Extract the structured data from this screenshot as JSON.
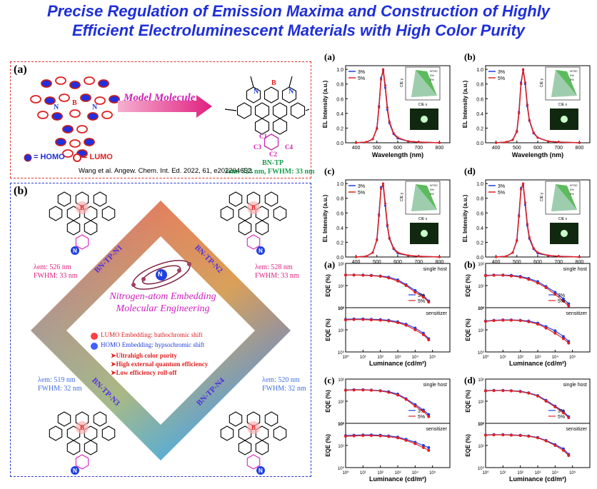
{
  "title_line1": "Precise Regulation of Emission Maxima and Construction of Highly",
  "title_line2": "Efficient Electroluminescent Materials with High Color Purity",
  "panel_a": {
    "label": "(a)",
    "arrow_text": "Model Molecule",
    "atoms": [
      "B",
      "N",
      "N"
    ],
    "sub_labels": [
      "C1",
      "C2",
      "C3",
      "C4"
    ],
    "molecule_name": "BN-TP",
    "emission": "λem: 523 nm, FWHM: 33 nm",
    "homo_label": "= HOMO",
    "lumo_label": "= LUMO",
    "citation": "Wang et al. Angew. Chem. Int. Ed. 2022, 61, e202204652."
  },
  "panel_b": {
    "label": "(b)",
    "n1": {
      "name": "BN-TP-N1",
      "lambda": "λem: 526 nm",
      "fwhm": "FWHM: 33 nm"
    },
    "n2": {
      "name": "BN-TP-N2",
      "lambda": "λem: 528 nm",
      "fwhm": "FWHM: 33 nm"
    },
    "n3": {
      "name": "BN-TP-N3",
      "lambda": "λem: 519 nm",
      "fwhm": "FWHM: 32 nm"
    },
    "n4": {
      "name": "BN-TP-N4",
      "lambda": "λem: 520 nm",
      "fwhm": "FWHM: 32 nm"
    },
    "center_title1": "Nitrogen-atom Embedding",
    "center_title2": "Molecular Engineering",
    "lumo_line": "LUMO Embedding: bathochromic shift",
    "homo_line": "HOMO Embedding: hypsochromic shift",
    "bullets": [
      "Ultrahigh color purity",
      "High external quantum efficiency",
      "Low efficiency roll-off"
    ],
    "atom_n": "N",
    "atom_b": "B"
  },
  "colors": {
    "title": "#1f2fd8",
    "blue": "#1f3fe0",
    "red": "#e02020",
    "magenta": "#e020c0",
    "green": "#1aa050"
  },
  "chart_data": [
    {
      "type": "line",
      "panel": "(a)",
      "xlabel": "Wavelength (nm)",
      "ylabel": "EL Intensity (a.u.)",
      "xlim": [
        350,
        850
      ],
      "ylim": [
        0,
        1.05
      ],
      "x": [
        400,
        450,
        480,
        500,
        510,
        520,
        530,
        540,
        550,
        560,
        580,
        600,
        650,
        700,
        800
      ],
      "series": [
        {
          "name": "3%",
          "values": [
            0,
            0.01,
            0.05,
            0.2,
            0.5,
            0.88,
            0.98,
            0.75,
            0.45,
            0.27,
            0.12,
            0.06,
            0.02,
            0.01,
            0
          ]
        },
        {
          "name": "5%",
          "values": [
            0,
            0.01,
            0.05,
            0.19,
            0.48,
            0.86,
            1.0,
            0.78,
            0.48,
            0.29,
            0.13,
            0.07,
            0.02,
            0.01,
            0
          ]
        }
      ],
      "inset": {
        "title": "",
        "xlabel": "CIE x",
        "ylabel": "CIE y",
        "legend": [
          "NTSC",
          "3%",
          "5%"
        ]
      }
    },
    {
      "type": "line",
      "panel": "(b)",
      "xlabel": "Wavelength (nm)",
      "ylabel": "EL Intensity (a.u.)",
      "xlim": [
        350,
        850
      ],
      "ylim": [
        0,
        1.05
      ],
      "x": [
        400,
        450,
        480,
        500,
        510,
        520,
        530,
        540,
        550,
        560,
        580,
        600,
        650,
        700,
        800
      ],
      "series": [
        {
          "name": "3%",
          "values": [
            0,
            0.01,
            0.04,
            0.16,
            0.42,
            0.82,
            0.99,
            0.8,
            0.5,
            0.3,
            0.13,
            0.07,
            0.02,
            0.01,
            0
          ]
        },
        {
          "name": "5%",
          "values": [
            0,
            0.01,
            0.04,
            0.15,
            0.4,
            0.8,
            1.0,
            0.82,
            0.52,
            0.31,
            0.14,
            0.07,
            0.02,
            0.01,
            0
          ]
        }
      ],
      "inset": {
        "title": "",
        "xlabel": "CIE x",
        "ylabel": "CIE y",
        "legend": [
          "NTSC",
          "3%",
          "5%"
        ]
      }
    },
    {
      "type": "line",
      "panel": "(c)",
      "xlabel": "Wavelength (nm)",
      "ylabel": "EL Intensity (a.u.)",
      "xlim": [
        350,
        850
      ],
      "ylim": [
        0,
        1.05
      ],
      "x": [
        400,
        450,
        480,
        500,
        510,
        520,
        530,
        540,
        550,
        560,
        580,
        600,
        650,
        700,
        800
      ],
      "series": [
        {
          "name": "3%",
          "values": [
            0,
            0.01,
            0.06,
            0.24,
            0.58,
            0.95,
            0.97,
            0.7,
            0.42,
            0.25,
            0.11,
            0.05,
            0.02,
            0.01,
            0
          ]
        },
        {
          "name": "5%",
          "values": [
            0,
            0.01,
            0.06,
            0.23,
            0.56,
            0.93,
            1.0,
            0.73,
            0.44,
            0.26,
            0.12,
            0.06,
            0.02,
            0.01,
            0
          ]
        }
      ],
      "inset": {
        "title": "",
        "xlabel": "CIE x",
        "ylabel": "CIE y",
        "legend": [
          "NTSC",
          "3%",
          "5%"
        ]
      }
    },
    {
      "type": "line",
      "panel": "(d)",
      "xlabel": "Wavelength (nm)",
      "ylabel": "EL Intensity (a.u.)",
      "xlim": [
        350,
        850
      ],
      "ylim": [
        0,
        1.05
      ],
      "x": [
        400,
        450,
        480,
        500,
        510,
        520,
        530,
        540,
        550,
        560,
        580,
        600,
        650,
        700,
        800
      ],
      "series": [
        {
          "name": "3%",
          "values": [
            0,
            0.01,
            0.06,
            0.23,
            0.57,
            0.94,
            0.98,
            0.71,
            0.43,
            0.25,
            0.11,
            0.05,
            0.02,
            0.01,
            0
          ]
        },
        {
          "name": "5%",
          "values": [
            0,
            0.01,
            0.06,
            0.22,
            0.55,
            0.92,
            1.0,
            0.74,
            0.45,
            0.27,
            0.12,
            0.06,
            0.02,
            0.01,
            0
          ]
        }
      ],
      "inset": {
        "title": "",
        "xlabel": "CIE x",
        "ylabel": "CIE y",
        "legend": [
          "NTSC",
          "3%",
          "5%"
        ]
      }
    },
    {
      "type": "scatter",
      "panel": "(a)",
      "xlabel": "Luminance (cd/m²)",
      "ylabel": "EQE (%)",
      "xscale": "log",
      "yscale": "log",
      "subplots": [
        {
          "label": "single host",
          "ylim": [
            1,
            100
          ],
          "x": [
            1,
            3,
            10,
            30,
            100,
            300,
            1000,
            3000,
            10000,
            30000,
            60000
          ],
          "series": [
            {
              "name": "3%",
              "values": [
                30,
                30,
                30,
                29,
                27,
                24,
                18,
                11,
                6,
                3.5,
                2
              ]
            },
            {
              "name": "5%",
              "values": [
                30,
                30,
                29,
                28,
                26,
                22,
                16,
                10,
                5,
                3,
                1.8
              ]
            }
          ]
        },
        {
          "label": "sensitizer",
          "ylim": [
            1,
            100
          ],
          "x": [
            1,
            3,
            10,
            30,
            100,
            300,
            1000,
            3000,
            10000,
            30000,
            60000
          ],
          "series": [
            {
              "name": "3%",
              "values": [
                30,
                31,
                31,
                30,
                29,
                27,
                23,
                18,
                12,
                7,
                4
              ]
            },
            {
              "name": "5%",
              "values": [
                28,
                29,
                29,
                28,
                27,
                25,
                21,
                16,
                10,
                6,
                3.5
              ]
            }
          ]
        }
      ]
    },
    {
      "type": "scatter",
      "panel": "(b)",
      "xlabel": "Luminance (cd/m²)",
      "ylabel": "EQE (%)",
      "xscale": "log",
      "yscale": "log",
      "subplots": [
        {
          "label": "single host",
          "ylim": [
            1,
            100
          ],
          "x": [
            1,
            3,
            10,
            30,
            100,
            300,
            1000,
            3000,
            10000,
            30000,
            60000
          ],
          "series": [
            {
              "name": "3%",
              "values": [
                29,
                30,
                30,
                29,
                26,
                21,
                15,
                9,
                5,
                2.5,
                1.5
              ]
            },
            {
              "name": "5%",
              "values": [
                28,
                29,
                29,
                27,
                24,
                19,
                13,
                8,
                4,
                2,
                1.2
              ]
            }
          ]
        },
        {
          "label": "sensitizer",
          "ylim": [
            1,
            100
          ],
          "x": [
            1,
            3,
            10,
            30,
            100,
            300,
            1000,
            3000,
            10000,
            30000,
            60000
          ],
          "series": [
            {
              "name": "3%",
              "values": [
                25,
                27,
                28,
                28,
                27,
                25,
                20,
                14,
                9,
                5,
                3
              ]
            },
            {
              "name": "5%",
              "values": [
                24,
                26,
                27,
                27,
                26,
                23,
                18,
                12,
                7,
                4,
                2.5
              ]
            }
          ]
        }
      ]
    },
    {
      "type": "scatter",
      "panel": "(c)",
      "xlabel": "Luminance (cd/m²)",
      "ylabel": "EQE (%)",
      "xscale": "log",
      "yscale": "log",
      "subplots": [
        {
          "label": "single host",
          "ylim": [
            1,
            100
          ],
          "x": [
            1,
            3,
            10,
            30,
            100,
            300,
            1000,
            3000,
            10000,
            30000,
            60000
          ],
          "series": [
            {
              "name": "3%",
              "values": [
                32,
                33,
                33,
                32,
                30,
                27,
                21,
                13,
                7,
                4,
                2.5
              ]
            },
            {
              "name": "5%",
              "values": [
                31,
                32,
                32,
                31,
                29,
                25,
                19,
                12,
                6,
                3.5,
                2
              ]
            }
          ]
        },
        {
          "label": "sensitizer",
          "ylim": [
            1,
            100
          ],
          "x": [
            1,
            3,
            10,
            30,
            100,
            300,
            1000,
            3000,
            10000,
            30000,
            60000
          ],
          "series": [
            {
              "name": "3%",
              "values": [
                28,
                29,
                30,
                30,
                29,
                27,
                24,
                19,
                14,
                10,
                8
              ]
            },
            {
              "name": "5%",
              "values": [
                26,
                27,
                28,
                28,
                27,
                25,
                22,
                17,
                12,
                8,
                6
              ]
            }
          ]
        }
      ]
    },
    {
      "type": "scatter",
      "panel": "(d)",
      "xlabel": "Luminance (cd/m²)",
      "ylabel": "EQE (%)",
      "xscale": "log",
      "yscale": "log",
      "subplots": [
        {
          "label": "single host",
          "ylim": [
            1,
            100
          ],
          "x": [
            1,
            3,
            10,
            30,
            100,
            300,
            1000,
            3000,
            10000,
            30000,
            60000
          ],
          "series": [
            {
              "name": "3%",
              "values": [
                30,
                31,
                31,
                30,
                28,
                24,
                18,
                11,
                6,
                3.5,
                2
              ]
            },
            {
              "name": "5%",
              "values": [
                29,
                30,
                30,
                29,
                27,
                23,
                17,
                10,
                5.5,
                3,
                1.8
              ]
            }
          ]
        },
        {
          "label": "sensitizer",
          "ylim": [
            1,
            100
          ],
          "x": [
            1,
            3,
            10,
            30,
            100,
            300,
            1000,
            3000,
            10000,
            30000,
            60000
          ],
          "series": [
            {
              "name": "3%",
              "values": [
                30,
                31,
                31,
                30,
                29,
                27,
                23,
                17,
                11,
                7,
                4
              ]
            },
            {
              "name": "5%",
              "values": [
                29,
                30,
                30,
                29,
                28,
                26,
                22,
                16,
                10,
                6,
                3.5
              ]
            }
          ]
        }
      ]
    }
  ]
}
